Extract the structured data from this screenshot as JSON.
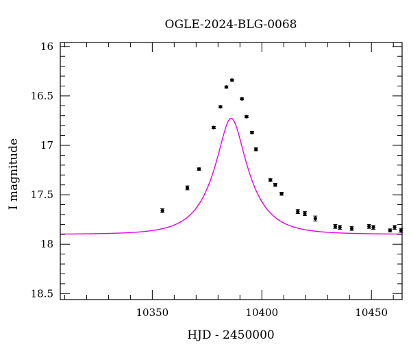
{
  "chart_data": {
    "type": "scatter",
    "title": "OGLE-2024-BLG-0068",
    "xlabel": "HJD - 2450000",
    "ylabel": "I magnitude",
    "xlim": [
      10308,
      10464
    ],
    "ylim": [
      18.56,
      15.96
    ],
    "y_inverted": true,
    "x_major_ticks": [
      10350,
      10400,
      10450
    ],
    "x_tick_labels": [
      "10350",
      "10400",
      "10450"
    ],
    "y_major_ticks": [
      16,
      16.5,
      17,
      17.5,
      18,
      18.5
    ],
    "y_tick_labels": [
      "16",
      "16.5",
      "17",
      "17.5",
      "18",
      "18.5"
    ],
    "grid": false,
    "model": {
      "t0": 10386,
      "u0": 0.355,
      "tE": 15.3,
      "baseline_mag": 17.9,
      "color": "#e600e6"
    },
    "points": [
      {
        "x": 10354.6,
        "y": 17.66,
        "err": 0.02
      },
      {
        "x": 10366.0,
        "y": 17.43,
        "err": 0.02
      },
      {
        "x": 10371.3,
        "y": 17.24,
        "err": 0.012
      },
      {
        "x": 10378.0,
        "y": 16.82,
        "err": 0.01
      },
      {
        "x": 10381.1,
        "y": 16.61,
        "err": 0.01
      },
      {
        "x": 10383.8,
        "y": 16.41,
        "err": 0.01
      },
      {
        "x": 10386.4,
        "y": 16.34,
        "err": 0.01
      },
      {
        "x": 10390.9,
        "y": 16.53,
        "err": 0.01
      },
      {
        "x": 10393.0,
        "y": 16.71,
        "err": 0.01
      },
      {
        "x": 10395.5,
        "y": 16.87,
        "err": 0.012
      },
      {
        "x": 10397.3,
        "y": 17.04,
        "err": 0.015
      },
      {
        "x": 10403.9,
        "y": 17.35,
        "err": 0.012
      },
      {
        "x": 10406.1,
        "y": 17.4,
        "err": 0.015
      },
      {
        "x": 10409.0,
        "y": 17.49,
        "err": 0.015
      },
      {
        "x": 10416.4,
        "y": 17.67,
        "err": 0.02
      },
      {
        "x": 10419.6,
        "y": 17.69,
        "err": 0.02
      },
      {
        "x": 10424.4,
        "y": 17.74,
        "err": 0.025
      },
      {
        "x": 10433.5,
        "y": 17.82,
        "err": 0.02
      },
      {
        "x": 10435.6,
        "y": 17.83,
        "err": 0.02
      },
      {
        "x": 10441.0,
        "y": 17.84,
        "err": 0.02
      },
      {
        "x": 10448.9,
        "y": 17.82,
        "err": 0.02
      },
      {
        "x": 10450.9,
        "y": 17.83,
        "err": 0.02
      },
      {
        "x": 10458.5,
        "y": 17.86,
        "err": 0.015
      },
      {
        "x": 10460.6,
        "y": 17.83,
        "err": 0.02
      },
      {
        "x": 10463.5,
        "y": 17.86,
        "err": 0.02
      }
    ],
    "marker_color": "#000000"
  }
}
